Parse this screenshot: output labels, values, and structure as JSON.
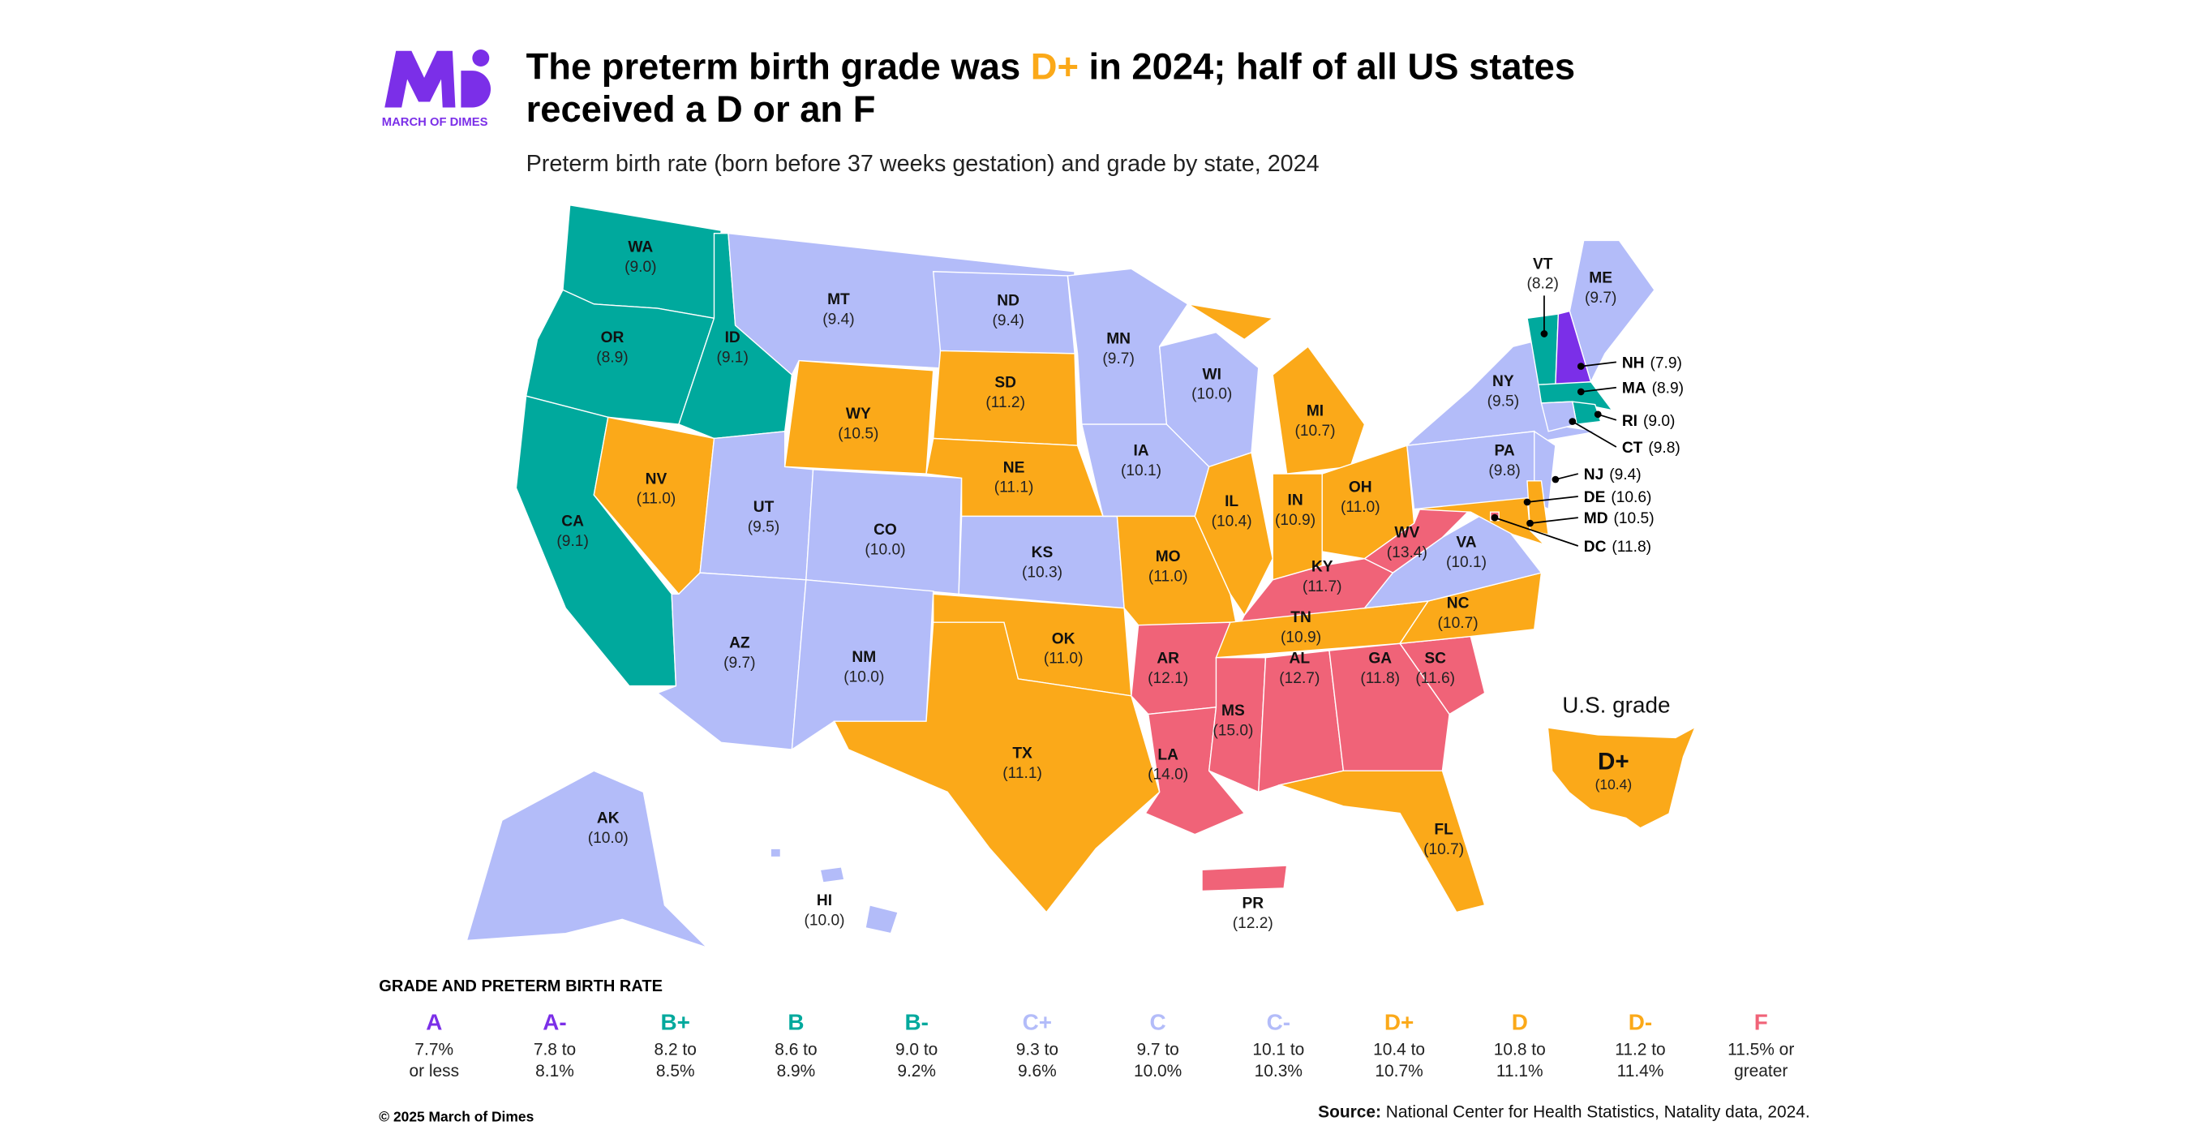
{
  "brand": {
    "logo_text": "MARCH OF DIMES",
    "color": "#7B2FE8"
  },
  "header": {
    "title_part1": "The preterm birth grade was ",
    "title_grade": "D+",
    "title_part2": " in 2024; half of all US states",
    "title_line2": "received a D or an F",
    "subtitle": "Preterm birth rate (born before 37 weeks gestation) and grade by state, 2024"
  },
  "colors": {
    "A": "#7B2FE8",
    "A-": "#7B2FE8",
    "B+": "#00A99D",
    "B": "#00A99D",
    "B-": "#00A99D",
    "C+": "#B3BCF9",
    "C": "#B3BCF9",
    "C-": "#B3BCF9",
    "D+": "#FBA919",
    "D": "#FBA919",
    "D-": "#FBA919",
    "F": "#F06378"
  },
  "us_grade": {
    "label": "U.S. grade",
    "grade": "D+",
    "rate": "(10.4)"
  },
  "states": [
    {
      "abbr": "WA",
      "rate": "(9.0)",
      "grade": "B-"
    },
    {
      "abbr": "OR",
      "rate": "(8.9)",
      "grade": "B"
    },
    {
      "abbr": "ID",
      "rate": "(9.1)",
      "grade": "B-"
    },
    {
      "abbr": "CA",
      "rate": "(9.1)",
      "grade": "B-"
    },
    {
      "abbr": "NV",
      "rate": "(11.0)",
      "grade": "D"
    },
    {
      "abbr": "UT",
      "rate": "(9.5)",
      "grade": "C+"
    },
    {
      "abbr": "AZ",
      "rate": "(9.7)",
      "grade": "C"
    },
    {
      "abbr": "MT",
      "rate": "(9.4)",
      "grade": "C+"
    },
    {
      "abbr": "WY",
      "rate": "(10.5)",
      "grade": "D+"
    },
    {
      "abbr": "CO",
      "rate": "(10.0)",
      "grade": "C"
    },
    {
      "abbr": "NM",
      "rate": "(10.0)",
      "grade": "C"
    },
    {
      "abbr": "ND",
      "rate": "(9.4)",
      "grade": "C+"
    },
    {
      "abbr": "SD",
      "rate": "(11.2)",
      "grade": "D-"
    },
    {
      "abbr": "NE",
      "rate": "(11.1)",
      "grade": "D"
    },
    {
      "abbr": "KS",
      "rate": "(10.3)",
      "grade": "C-"
    },
    {
      "abbr": "OK",
      "rate": "(11.0)",
      "grade": "D"
    },
    {
      "abbr": "TX",
      "rate": "(11.1)",
      "grade": "D"
    },
    {
      "abbr": "MN",
      "rate": "(9.7)",
      "grade": "C"
    },
    {
      "abbr": "IA",
      "rate": "(10.1)",
      "grade": "C-"
    },
    {
      "abbr": "MO",
      "rate": "(11.0)",
      "grade": "D"
    },
    {
      "abbr": "AR",
      "rate": "(12.1)",
      "grade": "F"
    },
    {
      "abbr": "LA",
      "rate": "(14.0)",
      "grade": "F"
    },
    {
      "abbr": "WI",
      "rate": "(10.0)",
      "grade": "C"
    },
    {
      "abbr": "IL",
      "rate": "(10.4)",
      "grade": "D+"
    },
    {
      "abbr": "MI",
      "rate": "(10.7)",
      "grade": "D+"
    },
    {
      "abbr": "IN",
      "rate": "(10.9)",
      "grade": "D"
    },
    {
      "abbr": "OH",
      "rate": "(11.0)",
      "grade": "D"
    },
    {
      "abbr": "KY",
      "rate": "(11.7)",
      "grade": "F"
    },
    {
      "abbr": "TN",
      "rate": "(10.9)",
      "grade": "D"
    },
    {
      "abbr": "MS",
      "rate": "(15.0)",
      "grade": "F"
    },
    {
      "abbr": "AL",
      "rate": "(12.7)",
      "grade": "F"
    },
    {
      "abbr": "GA",
      "rate": "(11.8)",
      "grade": "F"
    },
    {
      "abbr": "SC",
      "rate": "(11.6)",
      "grade": "F"
    },
    {
      "abbr": "NC",
      "rate": "(10.7)",
      "grade": "D+"
    },
    {
      "abbr": "VA",
      "rate": "(10.1)",
      "grade": "C-"
    },
    {
      "abbr": "WV",
      "rate": "(13.4)",
      "grade": "F"
    },
    {
      "abbr": "NY",
      "rate": "(9.5)",
      "grade": "C+"
    },
    {
      "abbr": "PA",
      "rate": "(9.8)",
      "grade": "C"
    },
    {
      "abbr": "ME",
      "rate": "(9.7)",
      "grade": "C"
    },
    {
      "abbr": "VT",
      "rate": "(8.2)",
      "grade": "B+"
    },
    {
      "abbr": "NH",
      "rate": "(7.9)",
      "grade": "A-"
    },
    {
      "abbr": "MA",
      "rate": "(8.9)",
      "grade": "B"
    },
    {
      "abbr": "RI",
      "rate": "(9.0)",
      "grade": "B-"
    },
    {
      "abbr": "CT",
      "rate": "(9.8)",
      "grade": "C"
    },
    {
      "abbr": "NJ",
      "rate": "(9.4)",
      "grade": "C+"
    },
    {
      "abbr": "DE",
      "rate": "(10.6)",
      "grade": "D+"
    },
    {
      "abbr": "MD",
      "rate": "(10.5)",
      "grade": "D+"
    },
    {
      "abbr": "DC",
      "rate": "(11.8)",
      "grade": "F"
    },
    {
      "abbr": "FL",
      "rate": "(10.7)",
      "grade": "D+"
    },
    {
      "abbr": "AK",
      "rate": "(10.0)",
      "grade": "C"
    },
    {
      "abbr": "HI",
      "rate": "(10.0)",
      "grade": "C"
    },
    {
      "abbr": "PR",
      "rate": "(12.2)",
      "grade": "F"
    }
  ],
  "legend": {
    "title": "GRADE AND PRETERM BIRTH RATE",
    "items": [
      {
        "grade": "A",
        "line1": "7.7%",
        "line2": "or less"
      },
      {
        "grade": "A-",
        "line1": "7.8 to",
        "line2": "8.1%"
      },
      {
        "grade": "B+",
        "line1": "8.2 to",
        "line2": "8.5%"
      },
      {
        "grade": "B",
        "line1": "8.6 to",
        "line2": "8.9%"
      },
      {
        "grade": "B-",
        "line1": "9.0 to",
        "line2": "9.2%"
      },
      {
        "grade": "C+",
        "line1": "9.3 to",
        "line2": "9.6%"
      },
      {
        "grade": "C",
        "line1": "9.7 to",
        "line2": "10.0%"
      },
      {
        "grade": "C-",
        "line1": "10.1 to",
        "line2": "10.3%"
      },
      {
        "grade": "D+",
        "line1": "10.4 to",
        "line2": "10.7%"
      },
      {
        "grade": "D",
        "line1": "10.8 to",
        "line2": "11.1%"
      },
      {
        "grade": "D-",
        "line1": "11.2 to",
        "line2": "11.4%"
      },
      {
        "grade": "F",
        "line1": "11.5% or",
        "line2": "greater"
      }
    ]
  },
  "footer": {
    "copyright": "© 2025 March of Dimes",
    "source_label": "Source:",
    "source_text": " National Center for Health Statistics, Natality data, 2024."
  }
}
